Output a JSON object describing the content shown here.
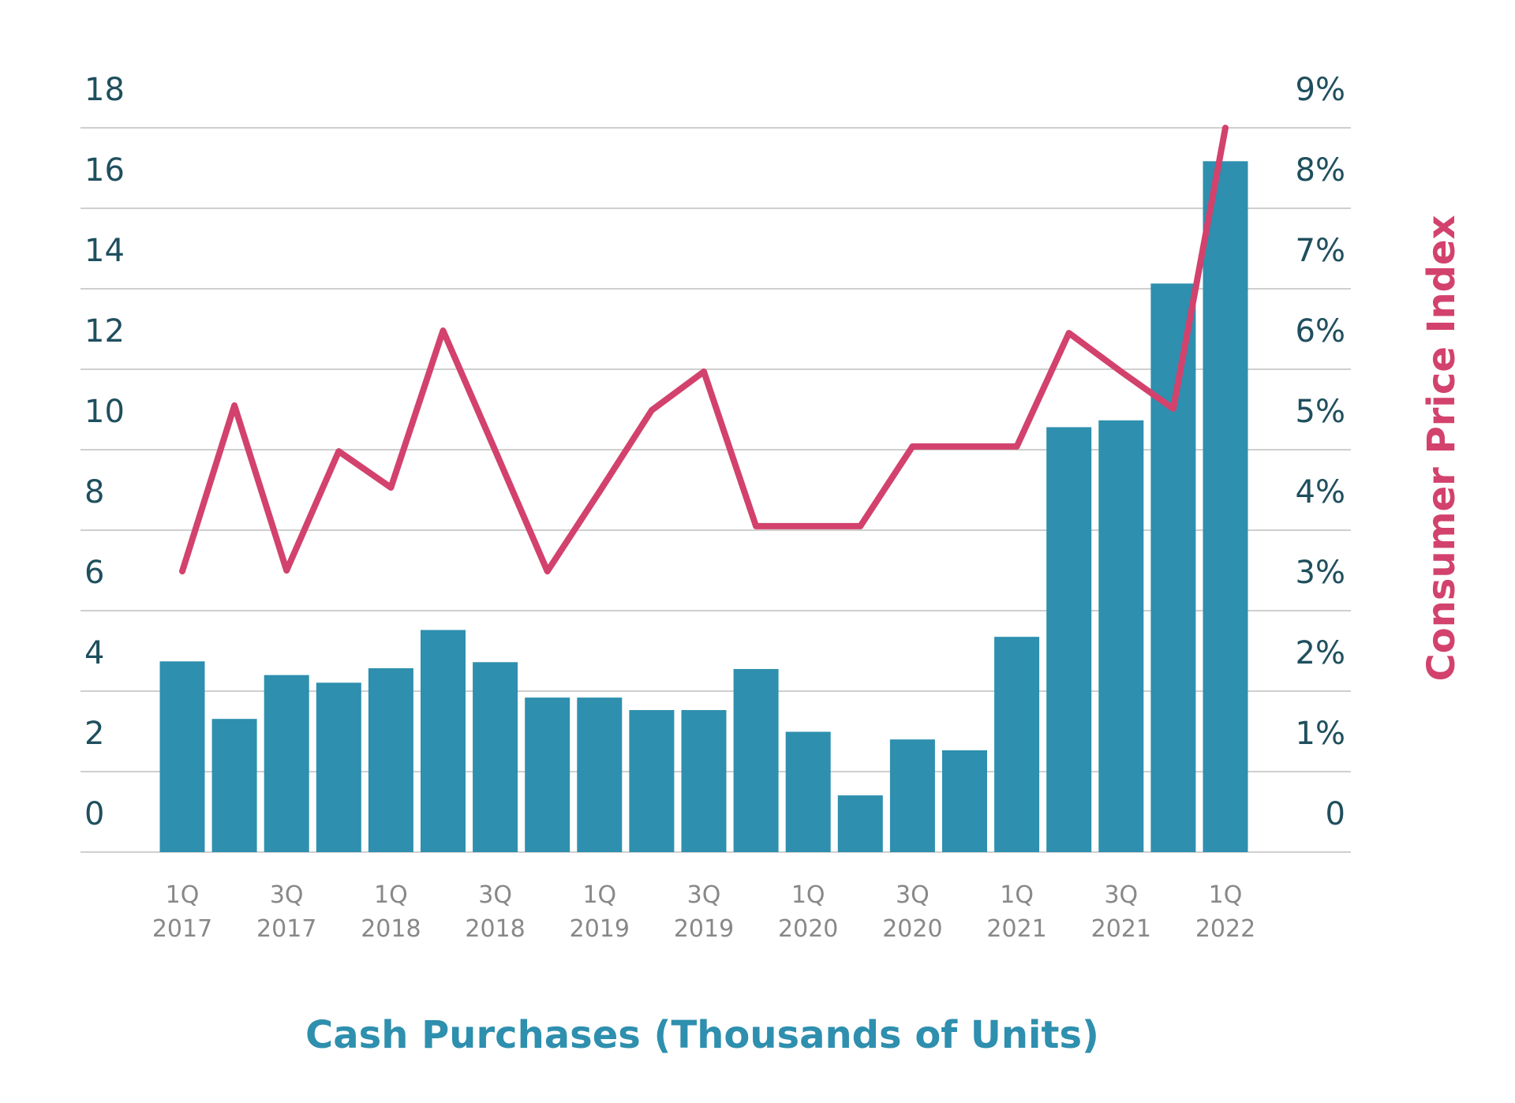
{
  "chart_data": {
    "type": "bar",
    "x_label": "Cash Purchases (Thousands of Units)",
    "y2_label": "Consumer Price Index",
    "categories": [
      "1Q 2017",
      null,
      "3Q 2017",
      null,
      "1Q 2018",
      null,
      "3Q 2018",
      null,
      "1Q 2019",
      null,
      "3Q 2019",
      null,
      "1Q 2020",
      null,
      "3Q 2020",
      null,
      "1Q 2021",
      null,
      "3Q 2021",
      null,
      "1Q 2022"
    ],
    "series": [
      {
        "name": "Cash Purchases",
        "type": "bar",
        "color": "#2e8fae",
        "values": [
          4.74,
          3.31,
          4.4,
          4.21,
          4.57,
          5.52,
          4.72,
          3.84,
          3.84,
          3.53,
          3.53,
          4.55,
          2.99,
          1.41,
          2.8,
          2.53,
          5.35,
          10.56,
          10.73,
          14.13,
          17.17
        ]
      },
      {
        "name": "Consumer Price Index",
        "type": "line",
        "axis": "y2",
        "color": "#d2426d",
        "values": [
          3.49,
          5.55,
          3.5,
          4.98,
          4.53,
          6.48,
          4.99,
          3.49,
          4.48,
          5.49,
          5.97,
          4.05,
          4.05,
          4.05,
          5.04,
          5.04,
          5.04,
          6.45,
          5.97,
          5.51,
          9.0
        ]
      }
    ],
    "ylim": [
      0,
      18
    ],
    "yticks": [
      0,
      2,
      4,
      6,
      8,
      10,
      12,
      14,
      16,
      18
    ],
    "y2lim": [
      0,
      9
    ],
    "y2ticks": [
      {
        "value": 0,
        "label": "0"
      },
      {
        "value": 1,
        "label": "1%"
      },
      {
        "value": 2,
        "label": "2%"
      },
      {
        "value": 3,
        "label": "3%"
      },
      {
        "value": 4,
        "label": "4%"
      },
      {
        "value": 5,
        "label": "5%"
      },
      {
        "value": 6,
        "label": "6%"
      },
      {
        "value": 7,
        "label": "7%"
      },
      {
        "value": 8,
        "label": "8%"
      },
      {
        "value": 9,
        "label": "9%"
      }
    ],
    "grid": true
  }
}
